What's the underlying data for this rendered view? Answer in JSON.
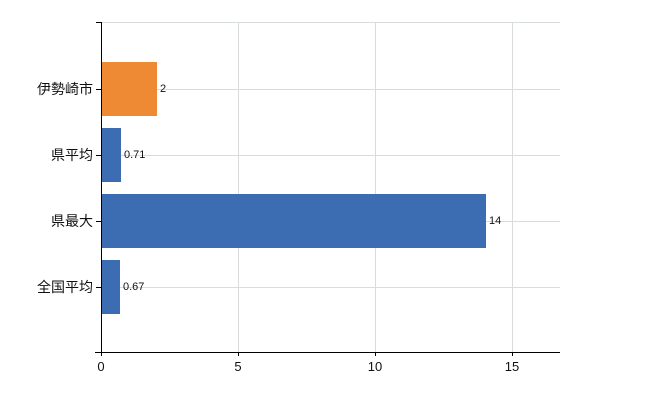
{
  "chart_data": {
    "type": "bar",
    "orientation": "horizontal",
    "title": "",
    "xlabel": "",
    "ylabel": "",
    "categories": [
      "伊勢崎市",
      "県平均",
      "県最大",
      "全国平均"
    ],
    "values": [
      2,
      0.71,
      14,
      0.67
    ],
    "value_labels": [
      "2",
      "0.71",
      "14",
      "0.67"
    ],
    "series": [
      {
        "name": "value",
        "values": [
          2,
          0.71,
          14,
          0.67
        ]
      }
    ],
    "bar_colors": [
      "#ed8a33",
      "#3c6db3",
      "#3c6db3",
      "#3c6db3"
    ],
    "x_ticks": [
      0,
      5,
      10,
      15
    ],
    "x_tick_labels": [
      "0",
      "5",
      "10",
      "15"
    ],
    "xlim": [
      0,
      16.75
    ],
    "grid": true,
    "legend": false,
    "colors": {
      "bar_orange": "#ed8a33",
      "bar_blue": "#3c6db3",
      "grid": "#d9ddd9",
      "axis": "#000000",
      "text": "#111111",
      "background": "#ffffff"
    }
  }
}
